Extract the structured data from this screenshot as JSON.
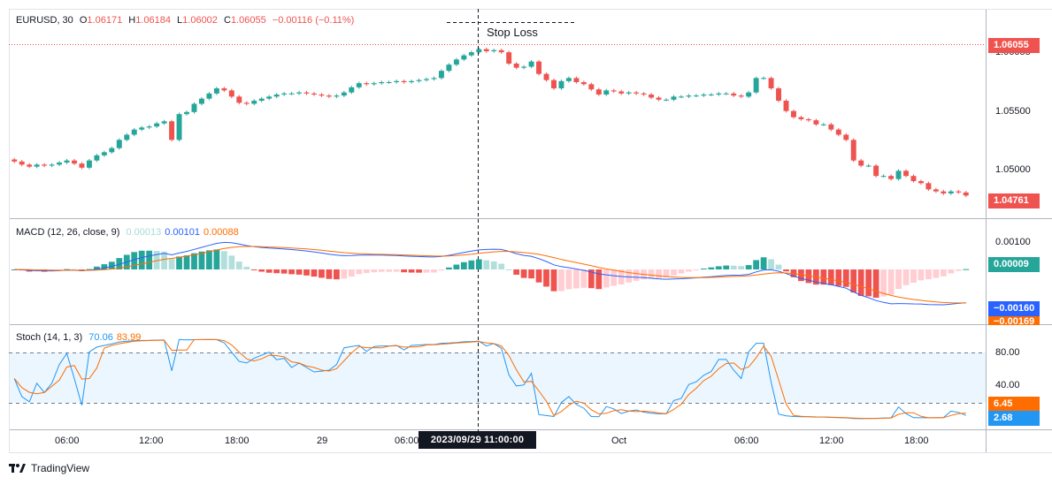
{
  "header": {
    "symbol": "EURUSD, 30",
    "o_label": "O",
    "o": "1.06171",
    "h_label": "H",
    "h": "1.06184",
    "l_label": "L",
    "l": "1.06002",
    "c_label": "C",
    "c": "1.06055",
    "change": "−0.00116 (−0.11%)"
  },
  "annotation": {
    "text": "Stop Loss"
  },
  "price_scale": {
    "ticks": [
      "1.06055",
      "1.05500",
      "1.05000",
      "1.04761"
    ],
    "current_price_box": "1.06055",
    "last_price_box": "1.04761"
  },
  "macd": {
    "title": "MACD (12, 26, close, 9)",
    "hist_value": "0.00013",
    "macd_value": "0.00101",
    "signal_value": "0.00088",
    "scale_tick": "0.00100",
    "box_hist": "0.00009",
    "box_macd": "−0.00160",
    "box_signal": "−0.00169"
  },
  "stoch": {
    "title": "Stoch (14, 1, 3)",
    "k_value": "70.06",
    "d_value": "83.99",
    "ticks": [
      "80.00",
      "40.00"
    ],
    "box_d": "6.45",
    "box_k": "2.68"
  },
  "time_axis": {
    "labels": [
      "06:00",
      "12:00",
      "18:00",
      "29",
      "06:00",
      "Oct",
      "06:00",
      "12:00",
      "18:00"
    ],
    "crosshair_label": "2023/09/29    11:00:00"
  },
  "footer": {
    "brand": "TradingView"
  },
  "colors": {
    "up": "#26a69a",
    "down": "#ef5350",
    "macd": "#2962ff",
    "signal": "#ff6d00",
    "stoch_k": "#2196f3",
    "stoch_d": "#ff6d00"
  },
  "chart_data": {
    "type": "candlestick",
    "symbol": "EURUSD",
    "timeframe": "30",
    "price_range": [
      1.046,
      1.064
    ],
    "closes": [
      1.0509,
      1.0506,
      1.0504,
      1.0506,
      1.0505,
      1.0506,
      1.0508,
      1.051,
      1.0507,
      1.0503,
      1.051,
      1.0515,
      1.0518,
      1.0522,
      1.053,
      1.0535,
      1.054,
      1.0542,
      1.0543,
      1.0546,
      1.0548,
      1.053,
      1.0555,
      1.0557,
      1.0565,
      1.057,
      1.0575,
      1.058,
      1.0578,
      1.0572,
      1.0566,
      1.0565,
      1.0568,
      1.057,
      1.0572,
      1.0574,
      1.0575,
      1.0575,
      1.0576,
      1.0575,
      1.0574,
      1.0573,
      1.0572,
      1.0573,
      1.0576,
      1.0581,
      1.0585,
      1.0584,
      1.0585,
      1.0586,
      1.0586,
      1.0587,
      1.0586,
      1.0587,
      1.0588,
      1.0589,
      1.059,
      1.0597,
      1.0603,
      1.0608,
      1.0612,
      1.0615,
      1.0618,
      1.0616,
      1.0617,
      1.0615,
      1.0604,
      1.06,
      1.0601,
      1.0606,
      1.0594,
      1.0588,
      1.058,
      1.0587,
      1.059,
      1.0586,
      1.0584,
      1.0579,
      1.0574,
      1.0578,
      1.0577,
      1.0575,
      1.0576,
      1.0575,
      1.0574,
      1.0571,
      1.0569,
      1.0569,
      1.0572,
      1.0572,
      1.0573,
      1.0573,
      1.0574,
      1.0574,
      1.0575,
      1.0575,
      1.0573,
      1.0572,
      1.0576,
      1.059,
      1.059,
      1.058,
      1.0568,
      1.0558,
      1.0552,
      1.055,
      1.0549,
      1.0545,
      1.0545,
      1.054,
      1.0535,
      1.053,
      1.051,
      1.0505,
      1.0505,
      1.0495,
      1.0495,
      1.0492,
      1.05,
      1.0495,
      1.049,
      1.0488,
      1.0482,
      1.048,
      1.0478,
      1.048,
      1.0479,
      1.0476
    ],
    "macd_series": {
      "name": "MACD",
      "last": 0.00101
    },
    "signal_series": {
      "name": "Signal",
      "last": 0.00088
    },
    "stoch": {
      "k_last": 70.06,
      "d_last": 83.99,
      "upper": 80,
      "lower": 20
    }
  }
}
